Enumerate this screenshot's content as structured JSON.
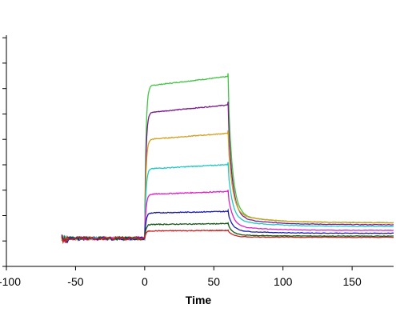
{
  "chart_data": {
    "type": "line",
    "title": "",
    "xlabel": "Time",
    "ylabel": "",
    "xlim": [
      -100,
      180
    ],
    "xticks": [
      -100,
      -50,
      0,
      50,
      100,
      150
    ],
    "xtick_labels": [
      "-100",
      "-50",
      "0",
      "50",
      "100",
      "150"
    ],
    "y_minor_tick_count": 10,
    "grid": false,
    "legend": "none",
    "baseline_range": [
      -60,
      0
    ],
    "association_end": 60,
    "series": [
      {
        "color": "#44c444",
        "plateau": 5.7,
        "dissoc_floor": 0.55,
        "x_end": 180
      },
      {
        "color": "#7a1a8c",
        "plateau": 4.7,
        "dissoc_floor": 0.48,
        "x_end": 180
      },
      {
        "color": "#d2a020",
        "plateau": 3.7,
        "dissoc_floor": 0.55,
        "x_end": 180
      },
      {
        "color": "#20c8c8",
        "plateau": 2.6,
        "dissoc_floor": 0.42,
        "x_end": 180
      },
      {
        "color": "#e020c8",
        "plateau": 1.65,
        "dissoc_floor": 0.28,
        "x_end": 180
      },
      {
        "color": "#1a1ab4",
        "plateau": 0.95,
        "dissoc_floor": 0.18,
        "x_end": 180
      },
      {
        "color": "#145a14",
        "plateau": 0.52,
        "dissoc_floor": 0.08,
        "x_end": 180
      },
      {
        "color": "#c82020",
        "plateau": 0.28,
        "dissoc_floor": 0.04,
        "x_end": 180
      }
    ]
  }
}
